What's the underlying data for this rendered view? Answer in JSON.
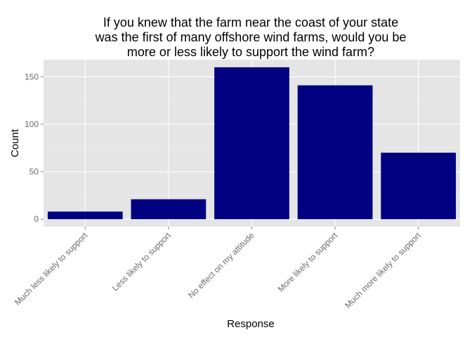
{
  "chart_data": {
    "type": "bar",
    "title_lines": [
      "If you knew that the farm near the coast of your state",
      "was the first of many offshore wind farms, would you be",
      "more or less likely to support the wind farm?"
    ],
    "xlabel": "Response",
    "ylabel": "Count",
    "categories": [
      "Much less likely to support",
      "Less likely to support",
      "No effect on my attitude",
      "More likely to support",
      "Much more likely to support"
    ],
    "values": [
      8,
      21,
      160,
      141,
      70
    ],
    "ylim": [
      -8,
      168
    ],
    "yticks": [
      0,
      50,
      100,
      150
    ],
    "bar_color": "#000080",
    "panel_color": "#e5e5e5",
    "grid_color": "#ffffff",
    "grid": true
  }
}
